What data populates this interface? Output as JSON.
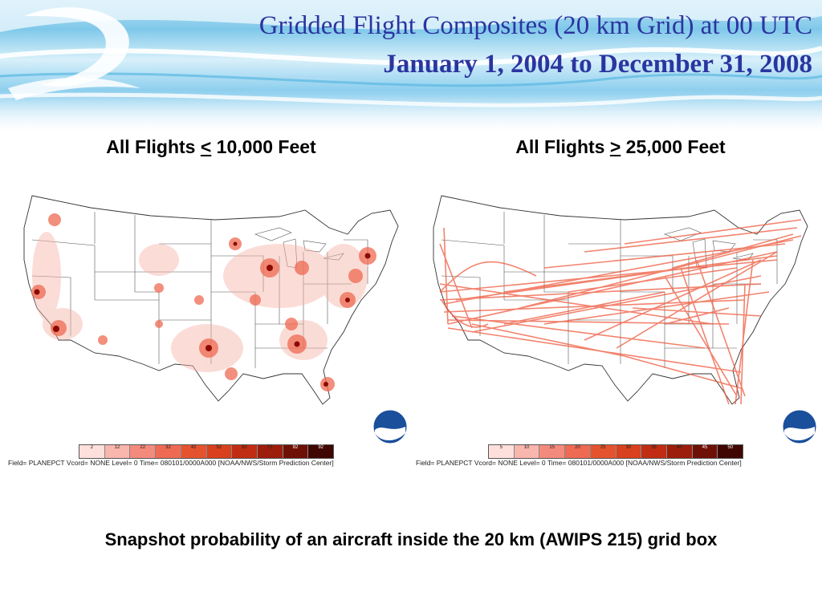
{
  "header": {
    "title": "Gridded Flight Composites (20 km Grid) at 00 UTC",
    "subtitle": "January 1, 2004 to December 31, 2008"
  },
  "panels": [
    {
      "heading_prefix": "All Flights ",
      "heading_symbol": "<",
      "heading_suffix": " 10,000 Feet",
      "legend_values": [
        "2",
        "12",
        "22",
        "32",
        "42",
        "52",
        "62",
        "72",
        "82",
        "92"
      ],
      "legend_colors": [
        "#fde0dc",
        "#f9b6ad",
        "#f48a7c",
        "#ee6a52",
        "#e5532e",
        "#d9401d",
        "#c02d12",
        "#9c1d0b",
        "#6f1006",
        "#400602"
      ],
      "field_text": "Field= PLANEPCT Vcord= NONE Level= 0 Time= 080101/0000A000 [NOAA/NWS/Storm Prediction Center]",
      "logo_text": "NOAA"
    },
    {
      "heading_prefix": "All Flights ",
      "heading_symbol": ">",
      "heading_suffix": " 25,000 Feet",
      "legend_values": [
        "5",
        "10",
        "15",
        "20",
        "25",
        "30",
        "35",
        "40",
        "45",
        "50"
      ],
      "legend_colors": [
        "#fde0dc",
        "#f9b6ad",
        "#f48a7c",
        "#ee6a52",
        "#e5532e",
        "#d9401d",
        "#c02d12",
        "#9c1d0b",
        "#6f1006",
        "#400602"
      ],
      "field_text": "Field= PLANEPCT Vcord= NONE Level= 0 Time= 080101/0000A000 [NOAA/NWS/Storm Prediction Center]",
      "logo_text": "NOAA"
    }
  ],
  "caption": "Snapshot probability of an aircraft inside the 20 km (AWIPS 215) grid box",
  "colors": {
    "title": "#2b35a0",
    "flight_low": "#f28a7a",
    "flight_high": "#8b0a04",
    "noaa_blue": "#1a4f9c"
  }
}
